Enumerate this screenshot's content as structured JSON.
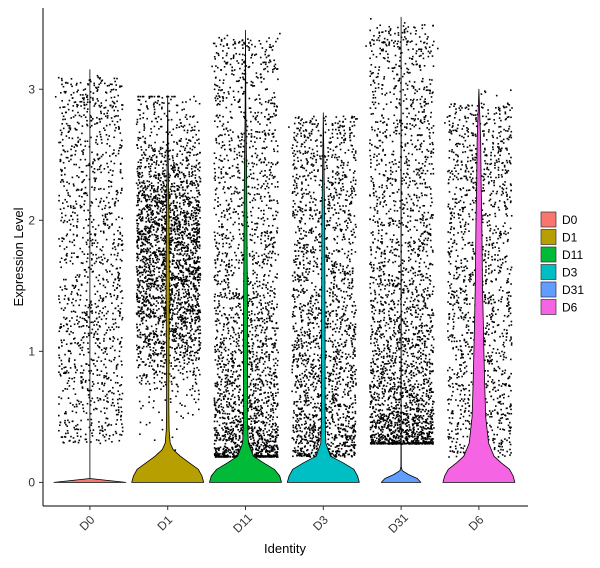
{
  "chart_data": {
    "type": "violin",
    "title": "",
    "xlabel": "Identity",
    "ylabel": "Expression Level",
    "ylim": [
      -0.18,
      3.62
    ],
    "yticks": [
      0,
      1,
      2,
      3
    ],
    "grid": false,
    "legend_position": "right",
    "categories": [
      "D0",
      "D1",
      "D11",
      "D3",
      "D31",
      "D6"
    ],
    "series": [
      {
        "name": "D0",
        "color": "#F8766D",
        "max": 3.15,
        "density_y": [
          0,
          0.03
        ],
        "density_w": [
          1.0,
          0.0
        ],
        "points": {
          "count": 1200,
          "low": 0.3,
          "high": 3.1,
          "shape": "uniform"
        }
      },
      {
        "name": "D1",
        "color": "#B79F00",
        "max": 2.95,
        "density_y": [
          0,
          0.05,
          0.1,
          0.15,
          0.2,
          0.25,
          0.3,
          0.4,
          0.6,
          1.0,
          1.5,
          2.0,
          2.5,
          2.95
        ],
        "density_w": [
          1.0,
          0.95,
          0.85,
          0.6,
          0.35,
          0.15,
          0.07,
          0.04,
          0.03,
          0.035,
          0.045,
          0.035,
          0.015,
          0.0
        ],
        "points": {
          "count": 2600,
          "low": 0.2,
          "high": 2.95,
          "shape": "mid-high"
        }
      },
      {
        "name": "D11",
        "color": "#00BA38",
        "max": 3.45,
        "density_y": [
          0,
          0.05,
          0.1,
          0.15,
          0.2,
          0.3,
          0.5,
          1.0,
          1.5,
          2.0,
          2.4,
          2.8,
          3.45
        ],
        "density_w": [
          1.0,
          0.95,
          0.8,
          0.5,
          0.22,
          0.08,
          0.05,
          0.06,
          0.05,
          0.04,
          0.03,
          0.01,
          0.0
        ],
        "points": {
          "count": 2400,
          "low": 0.2,
          "high": 3.4,
          "shape": "low"
        }
      },
      {
        "name": "D3",
        "color": "#00BFC4",
        "max": 2.82,
        "density_y": [
          0,
          0.05,
          0.1,
          0.15,
          0.2,
          0.3,
          0.5,
          1.0,
          1.5,
          2.0,
          2.4,
          2.82
        ],
        "density_w": [
          1.0,
          0.95,
          0.85,
          0.55,
          0.2,
          0.07,
          0.05,
          0.05,
          0.045,
          0.04,
          0.02,
          0.0
        ],
        "points": {
          "count": 2000,
          "low": 0.2,
          "high": 2.8,
          "shape": "mid"
        }
      },
      {
        "name": "D31",
        "color": "#619CFF",
        "max": 3.55,
        "density_y": [
          0,
          0.03,
          0.06,
          0.09,
          0.12,
          0.5,
          1.5,
          2.5,
          3.55
        ],
        "density_w": [
          0.55,
          0.45,
          0.2,
          0.03,
          0.006,
          0.004,
          0.003,
          0.002,
          0.0
        ],
        "points": {
          "count": 2500,
          "low": 0.3,
          "high": 3.5,
          "shape": "low"
        }
      },
      {
        "name": "D6",
        "color": "#F564E3",
        "max": 3.0,
        "density_y": [
          0,
          0.05,
          0.1,
          0.15,
          0.2,
          0.3,
          0.5,
          0.75,
          1.0,
          1.5,
          2.0,
          2.3,
          2.6,
          3.0
        ],
        "density_w": [
          1.0,
          0.95,
          0.85,
          0.62,
          0.42,
          0.27,
          0.19,
          0.16,
          0.14,
          0.1,
          0.08,
          0.06,
          0.05,
          0.0
        ],
        "points": {
          "count": 1400,
          "low": 0.2,
          "high": 2.9,
          "shape": "uniform"
        }
      }
    ]
  }
}
